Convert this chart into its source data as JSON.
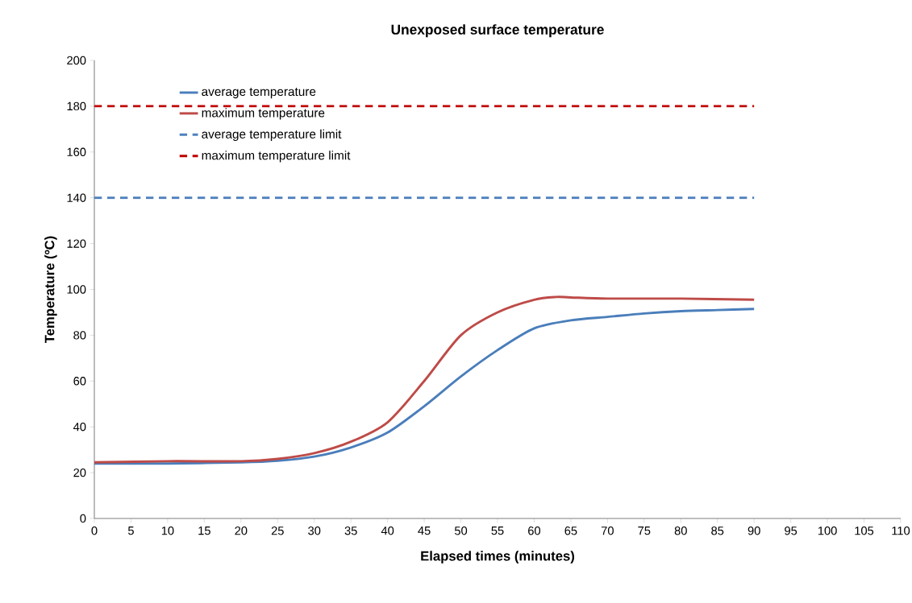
{
  "chart_data": {
    "type": "line",
    "title": "Unexposed surface temperature",
    "xlabel": "Elapsed times (minutes)",
    "ylabel": "Temperature (ºC)",
    "xlim": [
      0,
      110
    ],
    "xticks": [
      0,
      5,
      10,
      15,
      20,
      25,
      30,
      35,
      40,
      45,
      50,
      55,
      60,
      65,
      70,
      75,
      80,
      85,
      90,
      95,
      100,
      105,
      110
    ],
    "ylim": [
      0,
      200
    ],
    "yticks": [
      0,
      20,
      40,
      60,
      80,
      100,
      120,
      140,
      160,
      180,
      200
    ],
    "grid": false,
    "legend": "top left",
    "marker": "none",
    "series": [
      {
        "name": "average temperature",
        "color": "#4a7ebb",
        "line_style": "solid",
        "x": [
          0,
          10,
          20,
          25,
          30,
          35,
          40,
          45,
          50,
          55,
          60,
          65,
          70,
          75,
          80,
          85,
          90
        ],
        "values": [
          24,
          24,
          24.5,
          25.2,
          27,
          31,
          37.5,
          49,
          62,
          73.5,
          83,
          86.5,
          88,
          89.5,
          90.5,
          91,
          91.5
        ]
      },
      {
        "name": "maximum temperature",
        "color": "#be4b48",
        "line_style": "solid",
        "x": [
          0,
          10,
          20,
          25,
          30,
          35,
          40,
          45,
          50,
          55,
          60,
          63,
          65,
          70,
          80,
          90
        ],
        "values": [
          24.5,
          25,
          25,
          26,
          28.5,
          33.5,
          42,
          60,
          80,
          90,
          95.5,
          96.7,
          96.5,
          96,
          96,
          95.5
        ]
      },
      {
        "name": "average temperature limit",
        "color": "#4f81bd",
        "line_style": "dashed",
        "x": [
          0,
          90
        ],
        "values": [
          140,
          140
        ]
      },
      {
        "name": "maximum temperature limit",
        "color": "#c00000",
        "line_style": "dashed",
        "x": [
          0,
          90
        ],
        "values": [
          180,
          180
        ]
      }
    ]
  }
}
